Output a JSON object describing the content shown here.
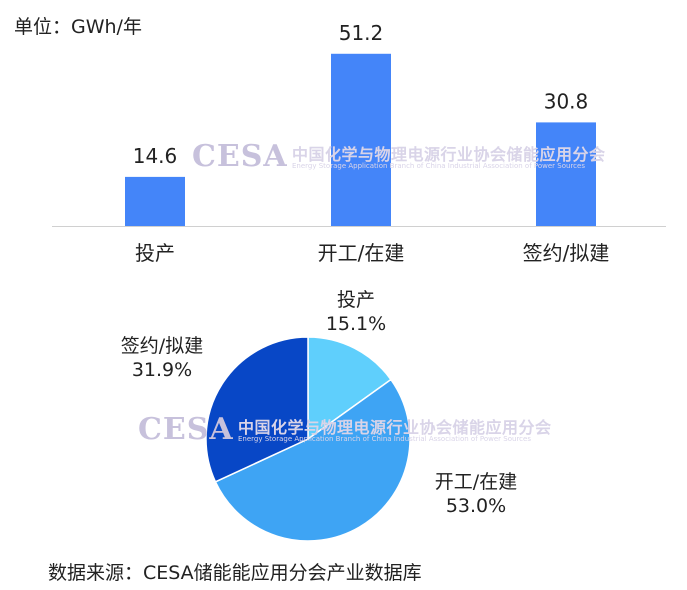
{
  "unit": "单位：GWh/年",
  "watermark": {
    "logo": "CESA",
    "cn": "中国化学与物理电源行业协会储能应用分会",
    "en": "Energy Storage Application Branch of China Industrial Association of Power Sources"
  },
  "source": "数据来源：CESA储能能应用分会产业数据库",
  "chart_data": [
    {
      "type": "bar",
      "categories": [
        "投产",
        "开工/在建",
        "签约/拟建"
      ],
      "values": [
        14.6,
        51.2,
        30.8
      ],
      "value_labels": [
        "14.6",
        "51.2",
        "30.8"
      ],
      "ylim": [
        0,
        55
      ],
      "bar_color": "#4485f9",
      "grid": false
    },
    {
      "type": "pie",
      "slices": [
        {
          "label": "投产",
          "pct_label": "15.1%",
          "value": 15.1,
          "color": "#5fcffc"
        },
        {
          "label": "开工/在建",
          "pct_label": "53.0%",
          "value": 53.0,
          "color": "#3ea4f4"
        },
        {
          "label": "签约/拟建",
          "pct_label": "31.9%",
          "value": 31.9,
          "color": "#0847c6"
        }
      ]
    }
  ]
}
